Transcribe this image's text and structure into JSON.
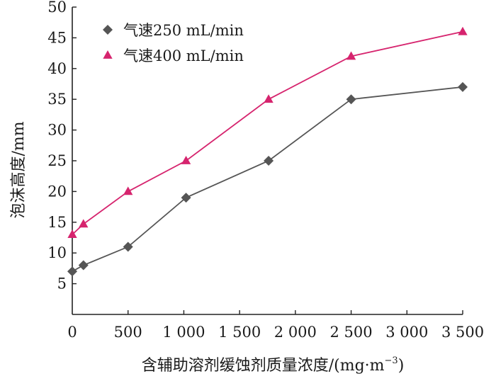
{
  "chart_data": {
    "type": "line",
    "xlabel": "含辅助溶剂缓蚀剂质量浓度/(mg·m",
    "xlabel_sup": "−3",
    "xlabel_close": ")",
    "ylabel": "泡沫高度/mm",
    "xlim": [
      0,
      3500
    ],
    "ylim": [
      0,
      50
    ],
    "x_ticks": [
      0,
      500,
      1000,
      1500,
      2000,
      2500,
      3000,
      3500
    ],
    "x_tick_labels": [
      "0",
      "500",
      "1 000",
      "1 500",
      "2 000",
      "2 500",
      "3 000",
      "3 500"
    ],
    "y_ticks": [
      5,
      10,
      15,
      20,
      25,
      30,
      35,
      40,
      45,
      50
    ],
    "y_tick_labels": [
      "5",
      "10",
      "15",
      "20",
      "25",
      "30",
      "35",
      "40",
      "45",
      "50"
    ],
    "grid": false,
    "legend_position": "top-left",
    "series": [
      {
        "name": "气速250 mL/min",
        "marker": "diamond",
        "color": "#555555",
        "x": [
          0,
          100,
          500,
          1020,
          1760,
          2500,
          3500
        ],
        "y": [
          7,
          8,
          11,
          19,
          25,
          35,
          37
        ]
      },
      {
        "name": "气速400 mL/min",
        "marker": "triangle",
        "color": "#d6246e",
        "x": [
          0,
          100,
          500,
          1020,
          1760,
          2500,
          3500
        ],
        "y": [
          13,
          14.7,
          20,
          25,
          35,
          42,
          46
        ]
      }
    ]
  }
}
